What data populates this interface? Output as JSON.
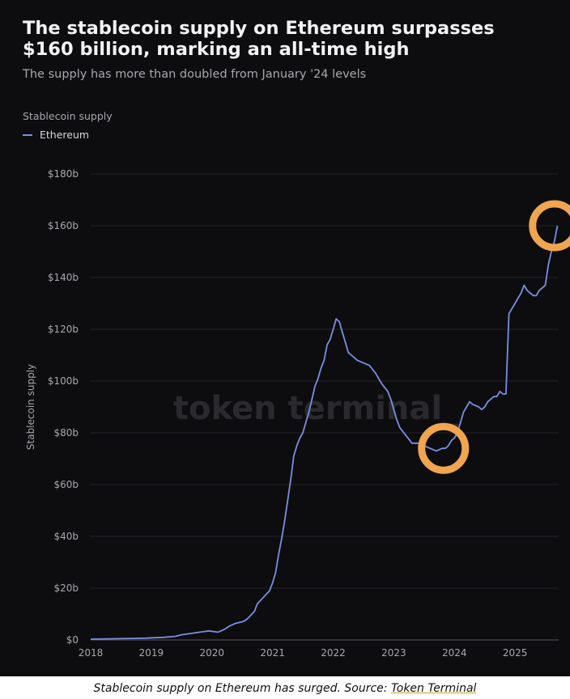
{
  "header": {
    "title": "The stablecoin supply on Ethereum surpasses $160 billion, marking an all-time high",
    "subtitle": "The supply has more than doubled from January '24 levels"
  },
  "legend": {
    "title": "Stablecoin supply",
    "item": "Ethereum"
  },
  "watermark": "token terminal_",
  "caption": {
    "text": "Stablecoin supply on Ethereum has surged. Source: ",
    "link": "Token Terminal"
  },
  "colors": {
    "background": "#0d0d0f",
    "line": "#7b8fe0",
    "highlight": "#f0a550"
  },
  "chart_data": {
    "type": "line",
    "ylabel": "Stablecoin supply",
    "xlabel": "",
    "xlim": [
      2018.0,
      2025.72
    ],
    "ylim": [
      0,
      180
    ],
    "y_ticks": [
      0,
      20,
      40,
      60,
      80,
      100,
      120,
      140,
      160,
      180
    ],
    "y_tick_labels": [
      "$0",
      "$20b",
      "$40b",
      "$60b",
      "$80b",
      "$100b",
      "$120b",
      "$140b",
      "$160b",
      "$180b"
    ],
    "x_ticks": [
      2018,
      2019,
      2020,
      2021,
      2022,
      2023,
      2024,
      2025
    ],
    "x_tick_labels": [
      "2018",
      "2019",
      "2020",
      "2021",
      "2022",
      "2023",
      "2024",
      "2025"
    ],
    "grid": "horizontal",
    "legend_position": "top-left",
    "series": [
      {
        "name": "Ethereum",
        "x": [
          2018.0,
          2018.5,
          2018.9,
          2019.2,
          2019.4,
          2019.5,
          2019.65,
          2019.8,
          2019.95,
          2020.1,
          2020.2,
          2020.3,
          2020.4,
          2020.5,
          2020.55,
          2020.6,
          2020.7,
          2020.75,
          2020.85,
          2020.95,
          2021.0,
          2021.05,
          2021.1,
          2021.15,
          2021.2,
          2021.3,
          2021.35,
          2021.4,
          2021.45,
          2021.5,
          2021.6,
          2021.65,
          2021.7,
          2021.75,
          2021.8,
          2021.85,
          2021.9,
          2021.95,
          2022.0,
          2022.05,
          2022.1,
          2022.15,
          2022.2,
          2022.25,
          2022.3,
          2022.35,
          2022.4,
          2022.5,
          2022.6,
          2022.7,
          2022.8,
          2022.9,
          2022.95,
          2023.0,
          2023.05,
          2023.1,
          2023.2,
          2023.3,
          2023.4,
          2023.5,
          2023.6,
          2023.7,
          2023.8,
          2023.85,
          2023.9,
          2023.95,
          2024.0,
          2024.05,
          2024.1,
          2024.15,
          2024.2,
          2024.25,
          2024.3,
          2024.4,
          2024.45,
          2024.5,
          2024.55,
          2024.6,
          2024.65,
          2024.7,
          2024.75,
          2024.8,
          2024.85,
          2024.9,
          2024.95,
          2025.0,
          2025.05,
          2025.1,
          2025.15,
          2025.2,
          2025.25,
          2025.3,
          2025.35,
          2025.4,
          2025.45,
          2025.5,
          2025.55,
          2025.6,
          2025.65,
          2025.7
        ],
        "values": [
          0.3,
          0.5,
          0.7,
          1.0,
          1.4,
          2.0,
          2.5,
          3.0,
          3.5,
          3.0,
          4.0,
          5.5,
          6.5,
          7.0,
          7.5,
          8.5,
          11.0,
          14.0,
          16.5,
          19.0,
          22.0,
          26.0,
          33.0,
          39.0,
          46.0,
          62.0,
          71.0,
          75.0,
          78.0,
          80.0,
          88.0,
          93.0,
          98.0,
          101.0,
          105.0,
          108.0,
          114.0,
          116.0,
          120.0,
          124.0,
          123.0,
          119.0,
          115.0,
          111.0,
          110.0,
          109.0,
          108.0,
          107.0,
          106.0,
          103.0,
          99.0,
          96.0,
          93.0,
          89.0,
          85.0,
          82.0,
          79.0,
          76.0,
          76.0,
          75.0,
          74.0,
          73.0,
          74.0,
          74.0,
          75.0,
          77.0,
          78.0,
          80.0,
          84.0,
          88.0,
          90.0,
          92.0,
          91.0,
          90.0,
          89.0,
          90.0,
          92.0,
          93.0,
          94.0,
          94.0,
          96.0,
          95.0,
          95.0,
          126.0,
          128.0,
          130.0,
          132.0,
          134.0,
          137.0,
          135.0,
          134.0,
          133.0,
          133.0,
          135.0,
          136.0,
          137.0,
          145.0,
          150.0,
          154.0,
          160.0
        ]
      }
    ],
    "annotations": [
      {
        "type": "circle",
        "x": 2023.82,
        "y": 74
      },
      {
        "type": "circle",
        "x": 2025.65,
        "y": 160
      }
    ]
  }
}
